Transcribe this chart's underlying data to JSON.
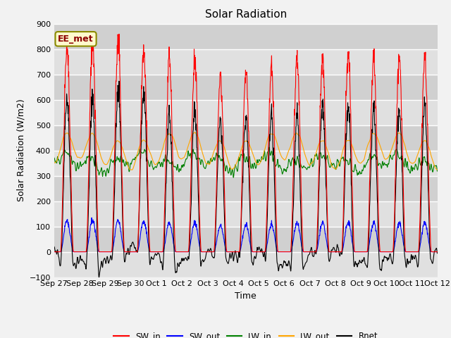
{
  "title": "Solar Radiation",
  "xlabel": "Time",
  "ylabel": "Solar Radiation (W/m2)",
  "ylim": [
    -100,
    900
  ],
  "fig_bg_color": "#f2f2f2",
  "plot_bg_color": "#d8d8d8",
  "plot_bg_light": "#e8e8e8",
  "grid_color": "white",
  "legend_entries": [
    "SW_in",
    "SW_out",
    "LW_in",
    "LW_out",
    "Rnet"
  ],
  "colors": {
    "SW_in": "red",
    "SW_out": "blue",
    "LW_in": "green",
    "LW_out": "orange",
    "Rnet": "black"
  },
  "annotation_text": "EE_met",
  "n_days": 15,
  "tick_labels": [
    "Sep 27",
    "Sep 28",
    "Sep 29",
    "Sep 30",
    "Oct 1",
    "Oct 2",
    "Oct 3",
    "Oct 4",
    "Oct 5",
    "Oct 6",
    "Oct 7",
    "Oct 8",
    "Oct 9",
    "Oct 10",
    "Oct 11",
    "Oct 12"
  ]
}
